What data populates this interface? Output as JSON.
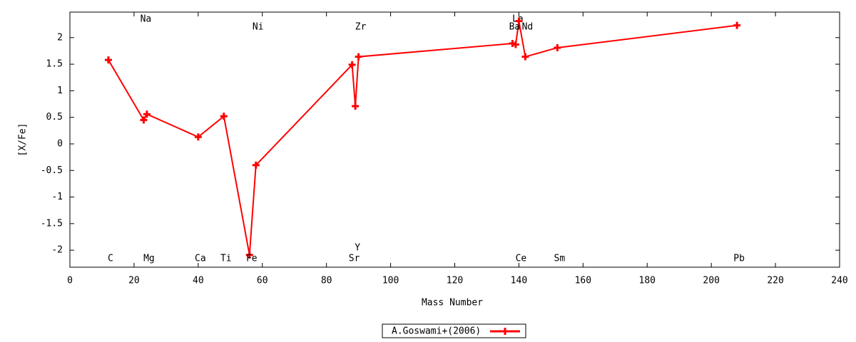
{
  "chart_data": {
    "type": "line",
    "xlabel": "Mass Number",
    "ylabel": "[X/Fe]",
    "xlim": [
      0,
      240
    ],
    "xticks": [
      0,
      20,
      40,
      60,
      80,
      100,
      120,
      140,
      160,
      180,
      200,
      220,
      240
    ],
    "ylim": [
      -2.32,
      2.48
    ],
    "yticks": [
      -2,
      -1.5,
      -1,
      -0.5,
      0,
      0.5,
      1,
      1.5,
      2
    ],
    "legend": "bottom-center",
    "series": [
      {
        "name": "A.Goswami+(2006)",
        "color": "#ff0000",
        "x": [
          12,
          23,
          24,
          40,
          48,
          56,
          58,
          88,
          89,
          90,
          138,
          139,
          140,
          142,
          152,
          208
        ],
        "values": [
          1.58,
          0.45,
          0.56,
          0.13,
          0.52,
          -2.09,
          -0.4,
          1.49,
          0.71,
          1.64,
          1.89,
          1.87,
          2.31,
          1.64,
          1.81,
          2.23
        ],
        "labels": [
          "C",
          "Na",
          "Mg",
          "Ca",
          "Ti",
          "Fe",
          "Ni",
          "Sr",
          "Y",
          "Zr",
          "Ba",
          "La",
          "Ce",
          "Nd",
          "Sm",
          "Pb"
        ]
      }
    ]
  }
}
